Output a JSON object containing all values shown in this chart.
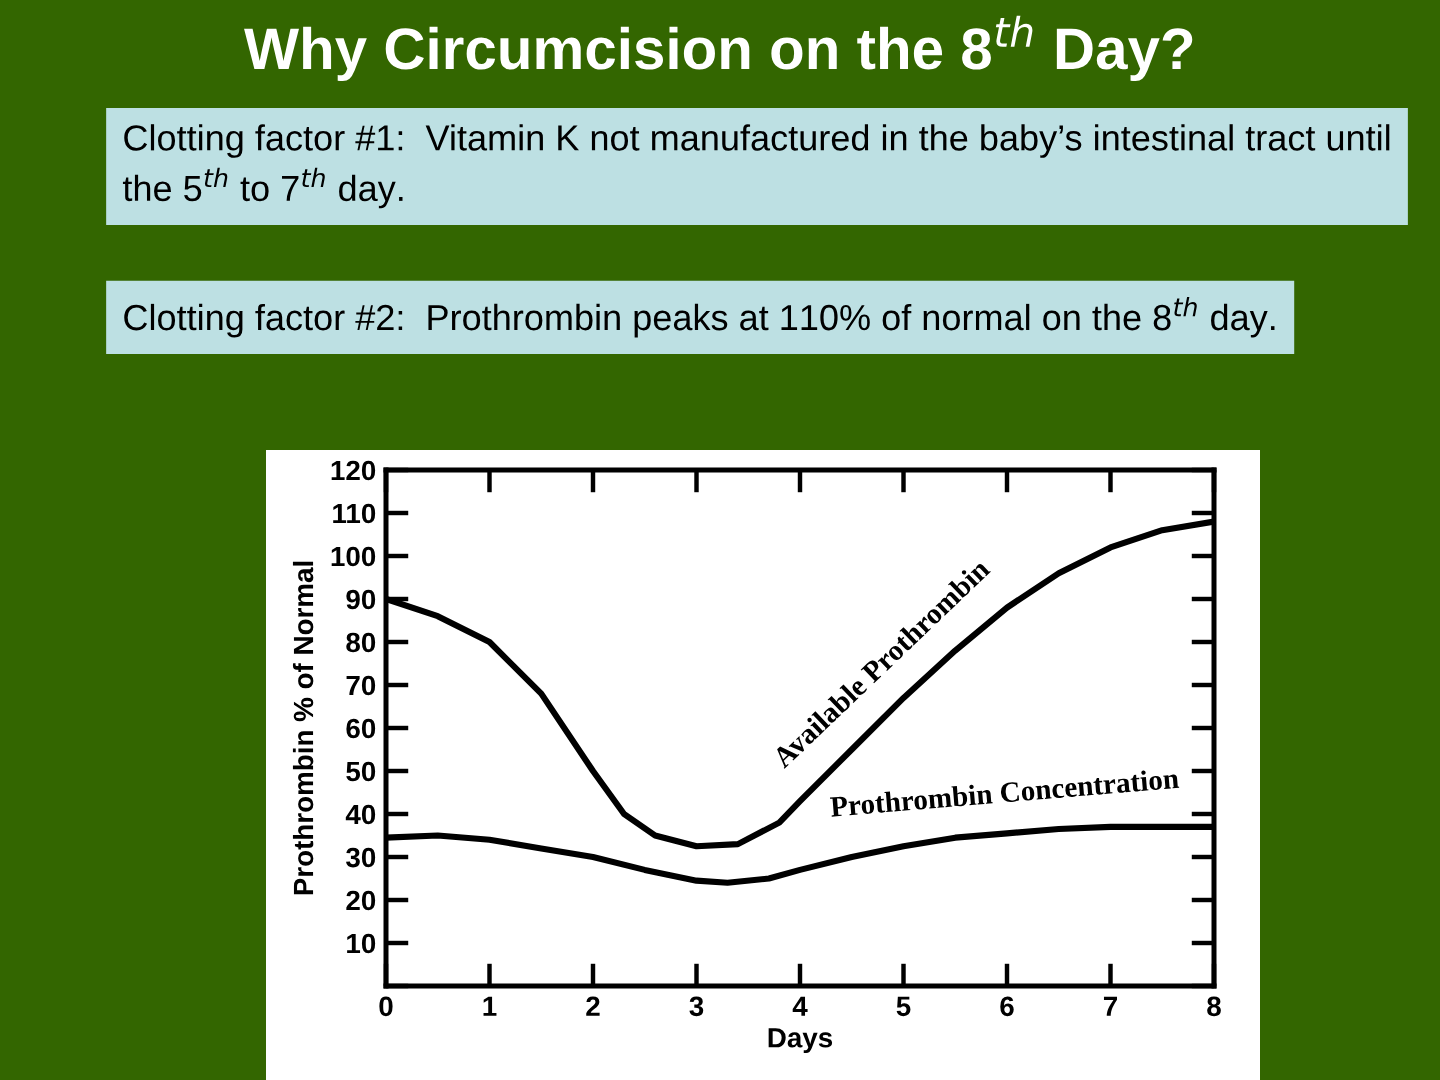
{
  "chart_data": {
    "type": "line",
    "title": "Why Circumcision on the 8$^{th}$ Day?",
    "annotations": [
      "Clotting factor #1:  Vitamin K not manufactured in the baby’s intestinal tract until the 5$^{th}$ to 7$^{th}$ day.",
      "Clotting factor #2:  Prothrombin peaks at 110% of normal on the 8$^{th}$ day."
    ],
    "xlabel": "Days",
    "ylabel": "Prothrombin % of Normal",
    "x": [
      0,
      0.5,
      1,
      1.5,
      2,
      2.3,
      2.6,
      3,
      3.4,
      3.8,
      4,
      4.5,
      5,
      5.5,
      6,
      6.5,
      7,
      7.5,
      8
    ],
    "series": [
      {
        "name": "Available Prothrombin",
        "color": "#000000",
        "values": [
          90,
          86,
          80,
          68,
          50,
          40,
          35,
          32.5,
          33,
          38,
          43,
          55,
          67,
          78,
          88,
          96,
          102,
          106,
          108
        ]
      },
      {
        "name": "Prothrombin Concentration",
        "color": "#000000",
        "x": [
          0,
          0.5,
          1,
          1.5,
          2,
          2.5,
          3,
          3.3,
          3.7,
          4,
          4.5,
          5,
          5.5,
          6,
          6.5,
          7,
          7.5,
          8
        ],
        "values": [
          34.5,
          35,
          34,
          32,
          30,
          27,
          24.5,
          24,
          25,
          27,
          30,
          32.5,
          34.5,
          35.5,
          36.5,
          37,
          37,
          37
        ]
      }
    ],
    "xlim": [
      0,
      8
    ],
    "xticks": [
      0,
      1,
      2,
      3,
      4,
      5,
      6,
      7,
      8
    ],
    "ylim": [
      0,
      120
    ],
    "yticks": [
      {
        "value": 0,
        "label": null
      },
      10,
      20,
      30,
      40,
      50,
      60,
      70,
      80,
      90,
      100,
      110,
      120
    ],
    "grid": false,
    "marker": "none",
    "line_style": "solid"
  }
}
